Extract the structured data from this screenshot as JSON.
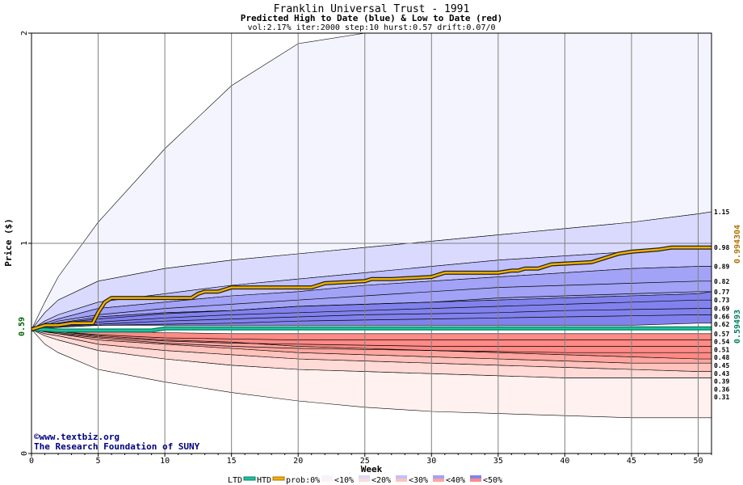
{
  "chart_data": {
    "type": "area",
    "title": "Franklin Universal Trust - 1991",
    "subtitle": "Predicted High to Date (blue) &  Low to Date (red)",
    "params": "vol:2.17% iter:2000 step:10 hurst:0.57 drift:0.07/0",
    "xlabel": "Week",
    "ylabel": "Price ($)",
    "xlim": [
      0,
      51
    ],
    "ylim": [
      0,
      2
    ],
    "x_ticks": [
      "0",
      "5",
      "10",
      "15",
      "20",
      "25",
      "30",
      "35",
      "40",
      "45",
      "50"
    ],
    "y_ticks": [
      "0",
      "1",
      "2"
    ],
    "start_price_label": "0.59",
    "start_price": 0.59,
    "right_labels": [
      "1.15",
      "0.98",
      "0.89",
      "0.82",
      "0.77",
      "0.73",
      "0.69",
      "0.66",
      "0.62",
      "0.57",
      "0.54",
      "0.51",
      "0.48",
      "0.45",
      "0.43",
      "0.39",
      "0.36",
      "0.31"
    ],
    "high_to_date_label": "0.994304",
    "low_to_date_label": "0.59493",
    "high_to_date_color": "#f0b000",
    "low_to_date_color": "#20c0a0",
    "ltd_color": "#008060",
    "htd_color": "#b07000",
    "band_edges_x": [
      0,
      1,
      2,
      5,
      10,
      15,
      20,
      25,
      30,
      35,
      40,
      45,
      50,
      51
    ],
    "blue_bands": [
      {
        "name": "<10%",
        "upper": [
          0.59,
          0.72,
          0.84,
          1.1,
          1.45,
          1.75,
          1.95,
          2.0,
          2.0,
          2.0,
          2.0,
          2.0,
          2.0,
          2.0
        ],
        "lower": [
          0.59,
          0.67,
          0.73,
          0.82,
          0.88,
          0.92,
          0.95,
          0.98,
          1.01,
          1.04,
          1.07,
          1.1,
          1.14,
          1.15
        ]
      },
      {
        "name": "<20%",
        "upper": [
          0.59,
          0.67,
          0.73,
          0.82,
          0.88,
          0.92,
          0.95,
          0.98,
          1.01,
          1.04,
          1.07,
          1.1,
          1.14,
          1.15
        ],
        "lower": [
          0.59,
          0.63,
          0.66,
          0.72,
          0.76,
          0.8,
          0.83,
          0.86,
          0.89,
          0.92,
          0.94,
          0.96,
          0.98,
          0.98
        ]
      },
      {
        "name": "<30%",
        "upper": [
          0.59,
          0.63,
          0.66,
          0.72,
          0.76,
          0.8,
          0.83,
          0.86,
          0.89,
          0.92,
          0.94,
          0.96,
          0.98,
          0.98
        ],
        "lower": [
          0.59,
          0.62,
          0.64,
          0.69,
          0.72,
          0.75,
          0.77,
          0.8,
          0.82,
          0.84,
          0.86,
          0.88,
          0.89,
          0.89
        ]
      },
      {
        "name": "<40%",
        "upper": [
          0.59,
          0.62,
          0.64,
          0.69,
          0.72,
          0.75,
          0.77,
          0.8,
          0.82,
          0.84,
          0.86,
          0.88,
          0.89,
          0.89
        ],
        "lower": [
          0.59,
          0.61,
          0.62,
          0.65,
          0.67,
          0.68,
          0.7,
          0.71,
          0.72,
          0.73,
          0.74,
          0.75,
          0.76,
          0.77
        ]
      },
      {
        "name": "<50%",
        "upper": [
          0.59,
          0.61,
          0.62,
          0.65,
          0.67,
          0.68,
          0.7,
          0.71,
          0.72,
          0.73,
          0.74,
          0.75,
          0.76,
          0.77
        ],
        "lower": [
          0.59,
          0.6,
          0.6,
          0.61,
          0.61,
          0.61,
          0.61,
          0.61,
          0.61,
          0.61,
          0.61,
          0.61,
          0.62,
          0.62
        ]
      }
    ],
    "blue_contours": [
      [
        0.59,
        0.61,
        0.63,
        0.66,
        0.69,
        0.71,
        0.73,
        0.75,
        0.77,
        0.79,
        0.8,
        0.81,
        0.82,
        0.82
      ],
      [
        0.59,
        0.605,
        0.62,
        0.64,
        0.665,
        0.68,
        0.7,
        0.71,
        0.72,
        0.74,
        0.75,
        0.76,
        0.77,
        0.77
      ],
      [
        0.59,
        0.6,
        0.61,
        0.625,
        0.645,
        0.66,
        0.67,
        0.68,
        0.69,
        0.7,
        0.71,
        0.72,
        0.73,
        0.73
      ],
      [
        0.59,
        0.6,
        0.605,
        0.615,
        0.63,
        0.64,
        0.65,
        0.66,
        0.665,
        0.67,
        0.68,
        0.685,
        0.69,
        0.69
      ],
      [
        0.59,
        0.597,
        0.6,
        0.61,
        0.615,
        0.62,
        0.63,
        0.635,
        0.64,
        0.645,
        0.65,
        0.655,
        0.66,
        0.66
      ]
    ],
    "red_bands": [
      {
        "name": "<10%",
        "upper": [
          0.59,
          0.56,
          0.54,
          0.49,
          0.45,
          0.42,
          0.4,
          0.39,
          0.38,
          0.37,
          0.36,
          0.36,
          0.36,
          0.36
        ],
        "lower": [
          0.59,
          0.52,
          0.48,
          0.4,
          0.34,
          0.29,
          0.25,
          0.22,
          0.2,
          0.19,
          0.18,
          0.17,
          0.17,
          0.17
        ]
      },
      {
        "name": "<20%",
        "upper": [
          0.59,
          0.57,
          0.56,
          0.52,
          0.49,
          0.47,
          0.45,
          0.44,
          0.43,
          0.42,
          0.41,
          0.4,
          0.39,
          0.39
        ],
        "lower": [
          0.59,
          0.56,
          0.54,
          0.49,
          0.45,
          0.42,
          0.4,
          0.39,
          0.38,
          0.37,
          0.36,
          0.36,
          0.36,
          0.36
        ]
      },
      {
        "name": "<30%",
        "upper": [
          0.59,
          0.58,
          0.57,
          0.54,
          0.52,
          0.5,
          0.48,
          0.47,
          0.46,
          0.45,
          0.44,
          0.43,
          0.43,
          0.43
        ],
        "lower": [
          0.59,
          0.57,
          0.56,
          0.52,
          0.49,
          0.47,
          0.45,
          0.44,
          0.43,
          0.42,
          0.41,
          0.4,
          0.39,
          0.39
        ]
      },
      {
        "name": "<40%",
        "upper": [
          0.59,
          0.585,
          0.58,
          0.56,
          0.54,
          0.53,
          0.51,
          0.5,
          0.49,
          0.48,
          0.47,
          0.46,
          0.45,
          0.45
        ],
        "lower": [
          0.59,
          0.58,
          0.57,
          0.54,
          0.52,
          0.5,
          0.48,
          0.47,
          0.46,
          0.45,
          0.44,
          0.43,
          0.43,
          0.43
        ]
      },
      {
        "name": "<50%",
        "upper": [
          0.59,
          0.59,
          0.585,
          0.58,
          0.575,
          0.57,
          0.57,
          0.57,
          0.57,
          0.57,
          0.57,
          0.57,
          0.57,
          0.57
        ],
        "lower": [
          0.59,
          0.585,
          0.58,
          0.56,
          0.54,
          0.53,
          0.51,
          0.5,
          0.49,
          0.48,
          0.47,
          0.46,
          0.45,
          0.45
        ]
      }
    ],
    "red_contours": [
      [
        0.59,
        0.585,
        0.58,
        0.565,
        0.55,
        0.545,
        0.54,
        0.54,
        0.54,
        0.54,
        0.54,
        0.54,
        0.54,
        0.54
      ],
      [
        0.59,
        0.58,
        0.575,
        0.555,
        0.535,
        0.525,
        0.52,
        0.515,
        0.51,
        0.51,
        0.51,
        0.51,
        0.51,
        0.51
      ],
      [
        0.59,
        0.578,
        0.57,
        0.55,
        0.525,
        0.51,
        0.5,
        0.495,
        0.49,
        0.485,
        0.48,
        0.48,
        0.48,
        0.48
      ]
    ],
    "high_to_date_x": [
      0,
      1,
      2,
      3,
      4,
      4.6,
      5,
      5.5,
      6,
      7,
      8,
      9,
      10,
      12,
      12.5,
      13,
      14,
      14.5,
      15,
      17,
      20,
      21,
      21.5,
      22,
      25,
      25.5,
      27,
      30,
      30.5,
      31,
      35,
      36,
      36.5,
      37,
      38,
      38.5,
      39,
      42,
      42.5,
      43,
      44,
      45,
      47,
      48,
      51
    ],
    "high_to_date_y": [
      0.59,
      0.61,
      0.61,
      0.62,
      0.62,
      0.62,
      0.67,
      0.72,
      0.74,
      0.74,
      0.74,
      0.74,
      0.74,
      0.74,
      0.76,
      0.77,
      0.77,
      0.78,
      0.79,
      0.79,
      0.79,
      0.79,
      0.8,
      0.81,
      0.82,
      0.83,
      0.83,
      0.84,
      0.85,
      0.86,
      0.86,
      0.87,
      0.87,
      0.88,
      0.88,
      0.89,
      0.9,
      0.91,
      0.92,
      0.93,
      0.95,
      0.96,
      0.97,
      0.98,
      0.98
    ],
    "low_to_date_x": [
      0,
      1,
      2,
      4,
      5,
      6,
      8,
      9,
      10,
      51
    ],
    "low_to_date_y": [
      0.59,
      0.59,
      0.585,
      0.585,
      0.585,
      0.585,
      0.585,
      0.585,
      0.595,
      0.595
    ]
  },
  "credit": {
    "site": "www.textbiz.org",
    "org": "The Research Foundation of SUNY"
  },
  "legend": {
    "ltd": "LTD",
    "htd": "HTD",
    "prob": "prob:0%",
    "items": [
      "<10%",
      "<20%",
      "<30%",
      "<40%",
      "<50%"
    ],
    "blue_colors": [
      "#f4f4ff",
      "#dadaff",
      "#c0c0ff",
      "#a2a2f6",
      "#8282ee"
    ],
    "red_colors": [
      "#fff1ef",
      "#ffdad6",
      "#ffc2bc",
      "#ffa6a0",
      "#ff8a86"
    ]
  }
}
